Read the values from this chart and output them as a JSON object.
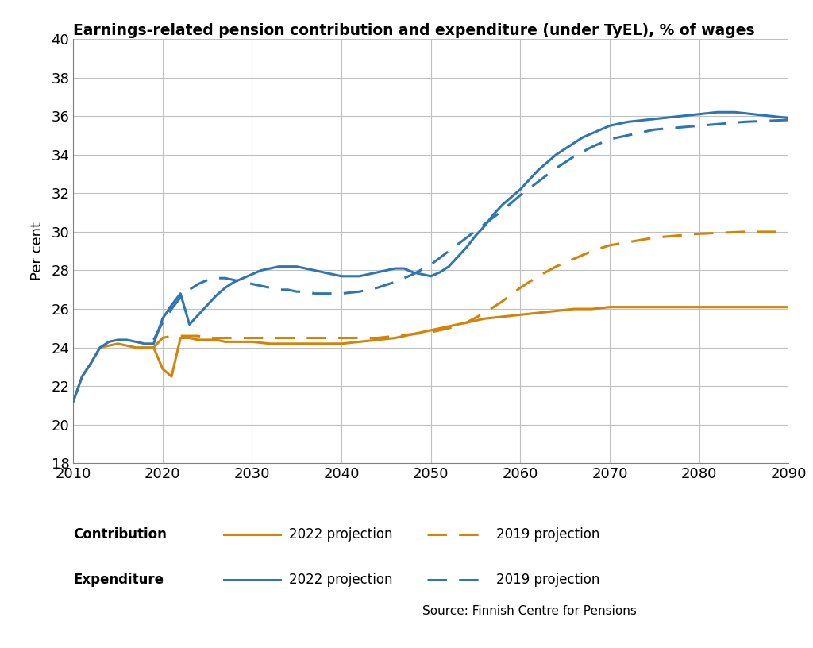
{
  "title": "Earnings-related pension contribution and expenditure (under TyEL), % of wages",
  "ylabel": "Per cent",
  "source": "Source: Finnish Centre for Pensions",
  "xlim": [
    2010,
    2090
  ],
  "ylim": [
    18,
    40
  ],
  "yticks": [
    18,
    20,
    22,
    24,
    26,
    28,
    30,
    32,
    34,
    36,
    38,
    40
  ],
  "xticks": [
    2010,
    2020,
    2030,
    2040,
    2050,
    2060,
    2070,
    2080,
    2090
  ],
  "orange_color": "#D4830A",
  "blue_color": "#2E75B6",
  "contribution_2022": {
    "x": [
      2010,
      2011,
      2012,
      2013,
      2014,
      2015,
      2016,
      2017,
      2018,
      2019,
      2020,
      2021,
      2022,
      2023,
      2024,
      2025,
      2026,
      2027,
      2028,
      2029,
      2030,
      2032,
      2034,
      2036,
      2038,
      2040,
      2042,
      2044,
      2046,
      2048,
      2050,
      2052,
      2054,
      2056,
      2058,
      2060,
      2062,
      2064,
      2066,
      2068,
      2070,
      2072,
      2074,
      2076,
      2078,
      2080,
      2082,
      2084,
      2086,
      2088,
      2090
    ],
    "y": [
      21.2,
      22.5,
      23.2,
      24.0,
      24.1,
      24.2,
      24.1,
      24.0,
      24.0,
      24.0,
      22.9,
      22.5,
      24.5,
      24.5,
      24.4,
      24.4,
      24.4,
      24.3,
      24.3,
      24.3,
      24.3,
      24.2,
      24.2,
      24.2,
      24.2,
      24.2,
      24.3,
      24.4,
      24.5,
      24.7,
      24.9,
      25.1,
      25.3,
      25.5,
      25.6,
      25.7,
      25.8,
      25.9,
      26.0,
      26.0,
      26.1,
      26.1,
      26.1,
      26.1,
      26.1,
      26.1,
      26.1,
      26.1,
      26.1,
      26.1,
      26.1
    ]
  },
  "contribution_2019": {
    "x": [
      2019,
      2020,
      2021,
      2022,
      2023,
      2024,
      2025,
      2026,
      2027,
      2028,
      2029,
      2030,
      2032,
      2034,
      2036,
      2038,
      2040,
      2042,
      2044,
      2046,
      2048,
      2050,
      2052,
      2054,
      2056,
      2058,
      2060,
      2062,
      2064,
      2066,
      2068,
      2070,
      2075,
      2080,
      2085,
      2090
    ],
    "y": [
      24.0,
      24.5,
      24.6,
      24.6,
      24.6,
      24.6,
      24.5,
      24.5,
      24.5,
      24.5,
      24.5,
      24.5,
      24.5,
      24.5,
      24.5,
      24.5,
      24.5,
      24.5,
      24.5,
      24.6,
      24.7,
      24.8,
      25.0,
      25.3,
      25.8,
      26.4,
      27.1,
      27.7,
      28.2,
      28.6,
      29.0,
      29.3,
      29.7,
      29.9,
      30.0,
      30.0
    ]
  },
  "expenditure_2022": {
    "x": [
      2010,
      2011,
      2012,
      2013,
      2014,
      2015,
      2016,
      2017,
      2018,
      2019,
      2020,
      2021,
      2022,
      2023,
      2024,
      2025,
      2026,
      2027,
      2028,
      2029,
      2030,
      2031,
      2032,
      2033,
      2034,
      2035,
      2036,
      2037,
      2038,
      2039,
      2040,
      2041,
      2042,
      2043,
      2044,
      2045,
      2046,
      2047,
      2048,
      2049,
      2050,
      2051,
      2052,
      2053,
      2054,
      2055,
      2056,
      2057,
      2058,
      2059,
      2060,
      2061,
      2062,
      2063,
      2064,
      2065,
      2066,
      2067,
      2068,
      2069,
      2070,
      2072,
      2074,
      2076,
      2078,
      2080,
      2082,
      2084,
      2086,
      2088,
      2090
    ],
    "y": [
      21.2,
      22.5,
      23.2,
      24.0,
      24.3,
      24.4,
      24.4,
      24.3,
      24.2,
      24.2,
      25.5,
      26.2,
      26.8,
      25.2,
      25.7,
      26.2,
      26.7,
      27.1,
      27.4,
      27.6,
      27.8,
      28.0,
      28.1,
      28.2,
      28.2,
      28.2,
      28.1,
      28.0,
      27.9,
      27.8,
      27.7,
      27.7,
      27.7,
      27.8,
      27.9,
      28.0,
      28.1,
      28.1,
      27.9,
      27.8,
      27.7,
      27.9,
      28.2,
      28.7,
      29.2,
      29.8,
      30.3,
      30.9,
      31.4,
      31.8,
      32.2,
      32.7,
      33.2,
      33.6,
      34.0,
      34.3,
      34.6,
      34.9,
      35.1,
      35.3,
      35.5,
      35.7,
      35.8,
      35.9,
      36.0,
      36.1,
      36.2,
      36.2,
      36.1,
      36.0,
      35.9
    ]
  },
  "expenditure_2019": {
    "x": [
      2019,
      2020,
      2021,
      2022,
      2023,
      2024,
      2025,
      2026,
      2027,
      2028,
      2029,
      2030,
      2031,
      2032,
      2033,
      2034,
      2035,
      2036,
      2037,
      2038,
      2039,
      2040,
      2042,
      2044,
      2046,
      2048,
      2050,
      2052,
      2054,
      2056,
      2058,
      2060,
      2062,
      2064,
      2066,
      2068,
      2070,
      2075,
      2080,
      2085,
      2090
    ],
    "y": [
      24.4,
      25.3,
      26.0,
      26.6,
      27.0,
      27.3,
      27.5,
      27.6,
      27.6,
      27.5,
      27.4,
      27.3,
      27.2,
      27.1,
      27.0,
      27.0,
      26.9,
      26.9,
      26.8,
      26.8,
      26.8,
      26.8,
      26.9,
      27.1,
      27.4,
      27.8,
      28.3,
      29.0,
      29.7,
      30.4,
      31.1,
      31.9,
      32.6,
      33.3,
      33.9,
      34.4,
      34.8,
      35.3,
      35.5,
      35.7,
      35.8
    ]
  }
}
